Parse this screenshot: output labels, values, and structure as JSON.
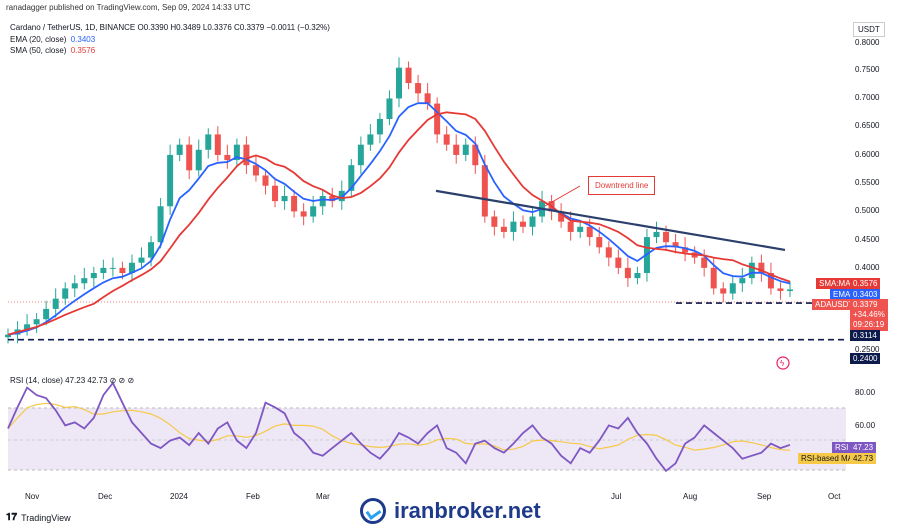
{
  "header": {
    "published": "ranadagger published on TradingView.com, Sep 09, 2024 14:33 UTC",
    "symbol_line": "Cardano / TetherUS, 1D, BINANCE",
    "ohlc": "O0.3390 H0.3489 L0.3376 C0.3379 −0.0011 (−0.32%)",
    "ema_label": "EMA (20, close)",
    "ema_value": "0.3403",
    "sma_label": "SMA (50, close)",
    "sma_value": "0.3576"
  },
  "rsi_legend": "RSI (14, close) 47.23 42.73 ⊘ ⊘ ⊘",
  "annotation": "Downtrend line",
  "currency": "USDT",
  "price_axis": [
    "0.8000",
    "0.7500",
    "0.7000",
    "0.6500",
    "0.6000",
    "0.5500",
    "0.5000",
    "0.4500",
    "0.4000",
    "0.2500"
  ],
  "tags": {
    "sma_name": "SMA:MA",
    "sma_val": "0.3576",
    "ema_name": "EMA",
    "ema_val": "0.3403",
    "sym_name": "ADAUSDT",
    "sym_val": "0.3379",
    "sym_change": "+34.46%",
    "sym_timer": "09:26:19",
    "support1": "0.3114",
    "support2": "0.2400",
    "rsi_name": "RSI",
    "rsi_val": "47.23",
    "rsi_ma_name": "RSI-based MA",
    "rsi_ma_val": "42.73"
  },
  "rsi_axis": [
    "80.00",
    "60.00"
  ],
  "x_axis": [
    "Nov",
    "Dec",
    "2024",
    "Feb",
    "Mar",
    "Jul",
    "Aug",
    "Sep",
    "Oct"
  ],
  "footer": {
    "tv": "TradingView",
    "brand": "iranbroker.net"
  },
  "colors": {
    "up": "#26a69a",
    "down": "#ef5350",
    "ema": "#2962ff",
    "sma": "#e53935",
    "trend": "#2a3f6b",
    "rsi": "#7e57c2",
    "rsi_ma": "#f7c948"
  },
  "chart_data": {
    "type": "candlestick",
    "price_range": [
      0.22,
      0.82
    ],
    "rsi_range": [
      20,
      90
    ],
    "series": [
      {
        "name": "EMA (20, close)",
        "type": "line"
      },
      {
        "name": "SMA (50, close)",
        "type": "line"
      }
    ],
    "close": [
      0.25,
      0.26,
      0.27,
      0.28,
      0.3,
      0.32,
      0.34,
      0.35,
      0.36,
      0.37,
      0.38,
      0.38,
      0.37,
      0.39,
      0.4,
      0.43,
      0.5,
      0.6,
      0.62,
      0.57,
      0.61,
      0.64,
      0.6,
      0.59,
      0.62,
      0.58,
      0.56,
      0.54,
      0.51,
      0.52,
      0.49,
      0.48,
      0.5,
      0.52,
      0.51,
      0.53,
      0.58,
      0.62,
      0.64,
      0.67,
      0.71,
      0.77,
      0.74,
      0.72,
      0.7,
      0.64,
      0.62,
      0.6,
      0.62,
      0.58,
      0.48,
      0.46,
      0.45,
      0.47,
      0.46,
      0.48,
      0.51,
      0.49,
      0.47,
      0.45,
      0.46,
      0.44,
      0.42,
      0.4,
      0.38,
      0.36,
      0.37,
      0.44,
      0.45,
      0.43,
      0.42,
      0.41,
      0.4,
      0.38,
      0.34,
      0.33,
      0.35,
      0.36,
      0.39,
      0.37,
      0.34,
      0.335,
      0.338
    ],
    "horizontal_levels": [
      0.3114,
      0.24
    ],
    "trendline": {
      "from": 0.53,
      "to": 0.415
    },
    "rsi": [
      58,
      72,
      85,
      80,
      78,
      70,
      60,
      62,
      58,
      65,
      80,
      88,
      75,
      62,
      55,
      48,
      45,
      50,
      52,
      47,
      55,
      48,
      58,
      62,
      50,
      45,
      55,
      75,
      72,
      68,
      55,
      50,
      42,
      40,
      45,
      50,
      55,
      48,
      42,
      38,
      45,
      55,
      52,
      48,
      55,
      60,
      45,
      42,
      35,
      48,
      50,
      45,
      42,
      48,
      55,
      60,
      52,
      48,
      40,
      35,
      45,
      42,
      50,
      60,
      58,
      65,
      55,
      48,
      38,
      30,
      35,
      48,
      52,
      60,
      55,
      50,
      45,
      38,
      40,
      42,
      48,
      45,
      47.23
    ]
  }
}
